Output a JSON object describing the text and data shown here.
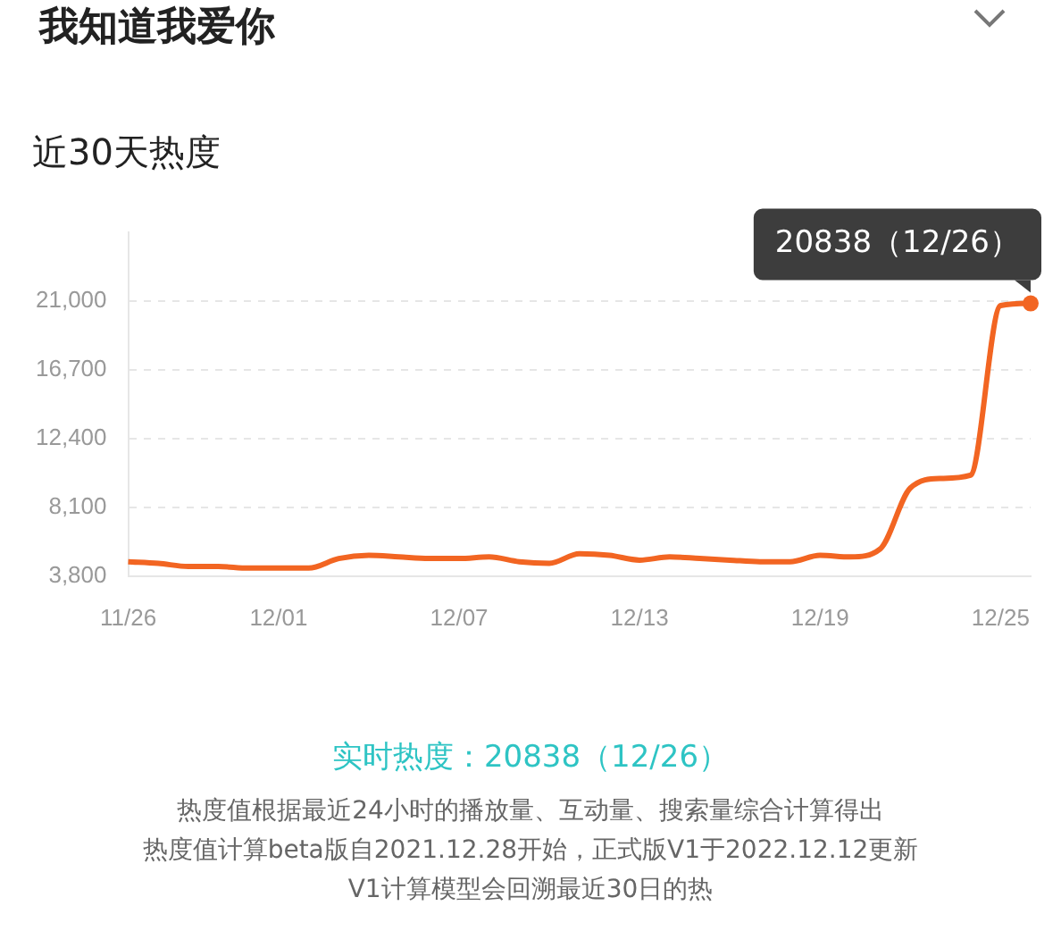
{
  "chart_data": {
    "type": "line",
    "title": "我知道我爱你",
    "subtitle": "近30天热度",
    "categories": [
      "11/26",
      null,
      null,
      null,
      null,
      "12/01",
      null,
      null,
      null,
      null,
      null,
      "12/07",
      null,
      null,
      null,
      null,
      null,
      "12/13",
      null,
      null,
      null,
      null,
      null,
      "12/19",
      null,
      null,
      null,
      null,
      null,
      "12/25",
      null
    ],
    "series": [
      {
        "color": "#f26522",
        "values": [
          4700,
          4600,
          4400,
          4400,
          4300,
          4300,
          4300,
          4900,
          5100,
          5000,
          4900,
          4900,
          5000,
          4700,
          4600,
          5200,
          5100,
          4800,
          5000,
          4900,
          4800,
          4700,
          4700,
          5100,
          5000,
          5500,
          9300,
          9900,
          10100,
          20700,
          20838
        ]
      }
    ],
    "ylim": [
      3800,
      25300
    ],
    "yticks": [
      {
        "value": 3800,
        "label": "3,800"
      },
      {
        "value": 8100,
        "label": "8,100"
      },
      {
        "value": 12400,
        "label": "12,400"
      },
      {
        "value": 16700,
        "label": "16,700"
      },
      {
        "value": 21000,
        "label": "21,000"
      }
    ],
    "grid": "y",
    "marker": "none",
    "line_style": "solid",
    "legend": false,
    "annotations": [
      "20838（12/26）",
      "实时热度：20838（12/26）",
      "热度值根据最近24小时的播放量、互动量、搜索量综合计算得出",
      "热度值计算beta版自2021.12.28开始，正式版V1于2022.12.12更新",
      "V1计算模型会回溯最近30日的热"
    ]
  }
}
